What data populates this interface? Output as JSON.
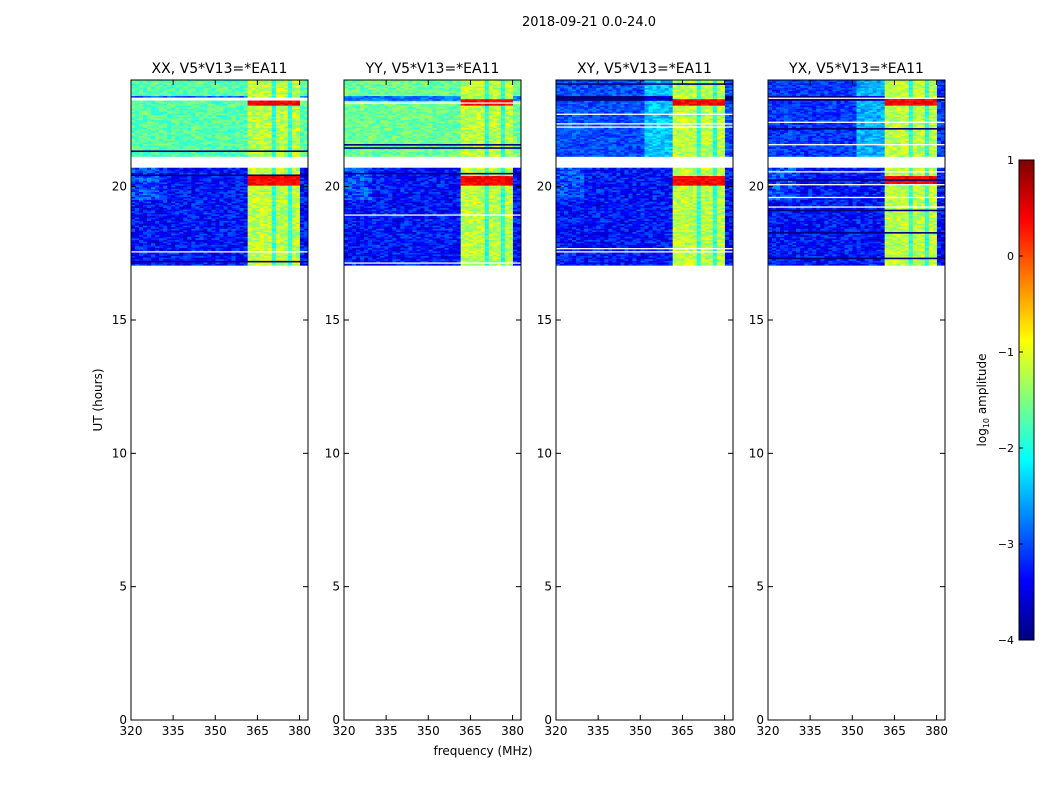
{
  "chart_data": {
    "type": "heatmap",
    "title": "2018-09-21 0.0-24.0",
    "xlabel": "frequency (MHz)",
    "ylabel": "UT (hours)",
    "xlim": [
      320,
      383
    ],
    "ylim": [
      0,
      24
    ],
    "xticks": [
      320,
      335,
      350,
      365,
      380
    ],
    "yticks": [
      0,
      5,
      10,
      15,
      20
    ],
    "data_time_range_hours": [
      17.05,
      24.0
    ],
    "blank_time_gap_hours": [
      20.7,
      21.1
    ],
    "bright_rfi_band_mhz": [
      361,
      380
    ],
    "panels": [
      {
        "title": "XX, V5*V13=*EA11",
        "upper_block_level": -1.7
      },
      {
        "title": "YY, V5*V13=*EA11",
        "upper_block_level": -1.6
      },
      {
        "title": "XY, V5*V13=*EA11",
        "upper_block_level": -3.0
      },
      {
        "title": "YX, V5*V13=*EA11",
        "upper_block_level": -3.1
      }
    ],
    "colorbar": {
      "label": "log10 amplitude",
      "label_base": "log",
      "label_sub": "10",
      "label_rest": " amplitude",
      "range": [
        -4,
        1
      ],
      "ticks": [
        -4,
        -3,
        -2,
        -1,
        0,
        1
      ],
      "colormap": "jet"
    },
    "colormap_stops": [
      "#00007f",
      "#0000ff",
      "#007fff",
      "#00ffff",
      "#7fff7f",
      "#ffff00",
      "#ff7f00",
      "#ff0000",
      "#7f0000"
    ]
  }
}
